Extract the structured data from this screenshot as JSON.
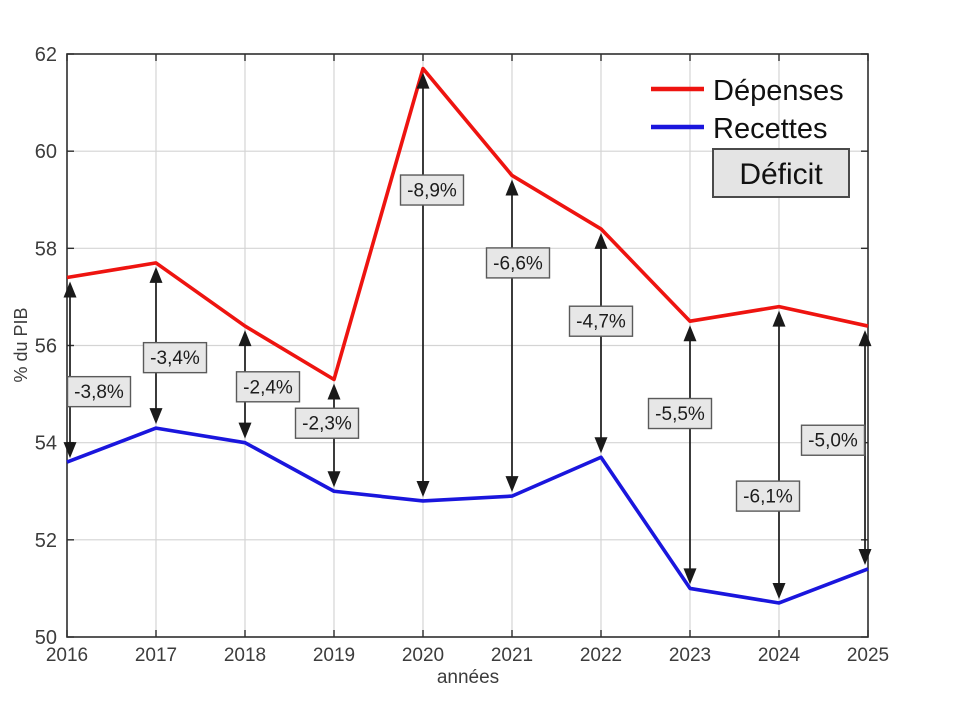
{
  "figure": {
    "legend": {
      "depenses": "Dépenses",
      "recettes": "Recettes",
      "deficit": "Déficit"
    },
    "colors": {
      "depenses": "#ee1410",
      "recettes": "#1a16dd",
      "grid": "#d4d4d4",
      "axis": "#2e2e2e",
      "annotation_fill": "#e7e7e7",
      "annotation_border": "#5a5a5a",
      "arrow": "#1a1a1a",
      "tick_text": "#3c3c3c"
    }
  },
  "chart_data": {
    "type": "line",
    "title": "",
    "xlabel": "années",
    "ylabel": "% du PIB",
    "x": [
      2016,
      2017,
      2018,
      2019,
      2020,
      2021,
      2022,
      2023,
      2024,
      2025
    ],
    "ylim": [
      50,
      62
    ],
    "yticks": [
      50,
      52,
      54,
      56,
      58,
      60,
      62
    ],
    "grid": true,
    "legend_position": "top-right",
    "series": [
      {
        "name": "Dépenses",
        "color": "#ee1410",
        "values": [
          57.4,
          57.7,
          56.4,
          55.3,
          61.7,
          59.5,
          58.4,
          56.5,
          56.8,
          56.4
        ]
      },
      {
        "name": "Recettes",
        "color": "#1a16dd",
        "values": [
          53.6,
          54.3,
          54.0,
          53.0,
          52.8,
          52.9,
          53.7,
          51.0,
          50.7,
          51.4
        ]
      }
    ],
    "deficit_annotations": [
      {
        "x": 2016,
        "label": "-3,8%",
        "dx": 32,
        "y": 55.05
      },
      {
        "x": 2017,
        "label": "-3,4%",
        "dx": 19,
        "y": 55.75
      },
      {
        "x": 2018,
        "label": "-2,4%",
        "dx": 23,
        "y": 55.15
      },
      {
        "x": 2019,
        "label": "-2,3%",
        "dx": -7,
        "y": 54.4
      },
      {
        "x": 2020,
        "label": "-8,9%",
        "dx": 9,
        "y": 59.2
      },
      {
        "x": 2021,
        "label": "-6,6%",
        "dx": 6,
        "y": 57.7
      },
      {
        "x": 2022,
        "label": "-4,7%",
        "dx": 0,
        "y": 56.5
      },
      {
        "x": 2023,
        "label": "-5,5%",
        "dx": -10,
        "y": 54.6
      },
      {
        "x": 2024,
        "label": "-6,1%",
        "dx": -11,
        "y": 52.9
      },
      {
        "x": 2025,
        "label": "-5,0%",
        "dx": -35,
        "y": 54.05
      }
    ]
  }
}
